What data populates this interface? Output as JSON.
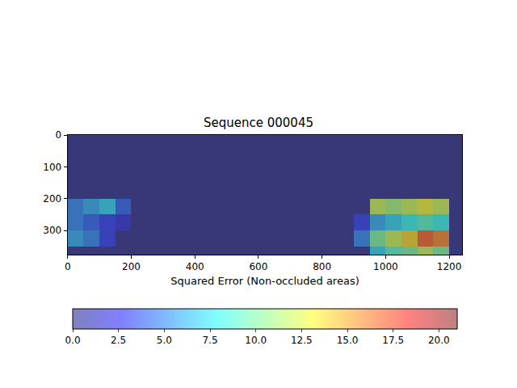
{
  "chart_data": {
    "type": "heatmap",
    "title": "Sequence 000045",
    "xlabel": "Squared Error (Non-occluded areas)",
    "color": "jet",
    "grid": false,
    "x": [
      25,
      75,
      125,
      175,
      225,
      275,
      325,
      375,
      425,
      475,
      525,
      575,
      625,
      675,
      725,
      775,
      825,
      875,
      925,
      975,
      1025,
      1075,
      1125,
      1175,
      1225
    ],
    "y": [
      25,
      75,
      125,
      175,
      225,
      275,
      325,
      375
    ],
    "cells": [
      [
        0,
        0,
        0,
        0,
        0,
        0,
        0,
        0,
        0,
        0,
        0,
        0,
        0,
        0,
        0,
        0,
        0,
        0,
        0,
        0,
        0,
        0,
        0,
        0,
        0
      ],
      [
        0,
        0,
        0,
        0,
        0,
        0,
        0,
        0,
        0,
        0,
        0,
        0,
        0,
        0,
        0,
        0,
        0,
        0,
        0,
        0,
        0,
        0,
        0,
        0,
        0
      ],
      [
        0,
        0,
        0,
        0,
        0,
        0,
        0,
        0,
        0,
        0,
        0,
        0,
        0,
        0,
        0,
        0,
        0,
        0,
        0,
        0,
        0,
        0,
        0,
        0,
        0
      ],
      [
        0,
        0,
        0,
        0,
        0,
        0,
        0,
        0,
        0,
        0,
        0,
        0,
        0,
        0,
        0,
        0,
        0,
        0,
        0,
        0,
        0,
        0,
        0,
        0,
        0
      ],
      [
        5,
        6,
        7,
        4,
        0,
        0,
        0,
        0,
        0,
        0,
        0,
        0,
        0,
        0,
        0,
        0,
        0,
        0,
        0,
        12,
        11,
        12,
        13,
        12,
        0
      ],
      [
        5,
        4,
        3,
        2,
        0,
        0,
        0,
        0,
        0,
        0,
        0,
        0,
        0,
        0,
        0,
        0,
        0,
        0,
        3,
        6,
        7,
        8,
        9,
        8,
        0
      ],
      [
        6,
        5,
        3,
        0,
        0,
        0,
        0,
        0,
        0,
        0,
        0,
        0,
        0,
        0,
        0,
        0,
        0,
        0,
        5,
        10,
        12,
        14,
        17,
        16,
        0
      ],
      [
        0,
        0,
        0,
        0,
        0,
        0,
        0,
        0,
        0,
        0,
        0,
        0,
        0,
        0,
        0,
        0,
        0,
        0,
        0,
        7,
        9,
        10,
        12,
        10,
        0
      ]
    ],
    "xlim": [
      -0.5,
      1241.5
    ],
    "ylim": [
      375.5,
      -0.5
    ],
    "xticks": [
      0,
      200,
      400,
      600,
      800,
      1000,
      1200
    ],
    "yticks": [
      0,
      100,
      200,
      300
    ],
    "colorbar_range": [
      0,
      21
    ],
    "colorbar_ticks": [
      {
        "value": 0,
        "label": "0.0"
      },
      2.5,
      {
        "value": 5,
        "label": "5.0"
      },
      7.5,
      {
        "value": 10,
        "label": "10.0"
      },
      12.5,
      {
        "value": 15,
        "label": "15.0"
      },
      17.5,
      {
        "value": 20,
        "label": "20.0"
      }
    ]
  }
}
